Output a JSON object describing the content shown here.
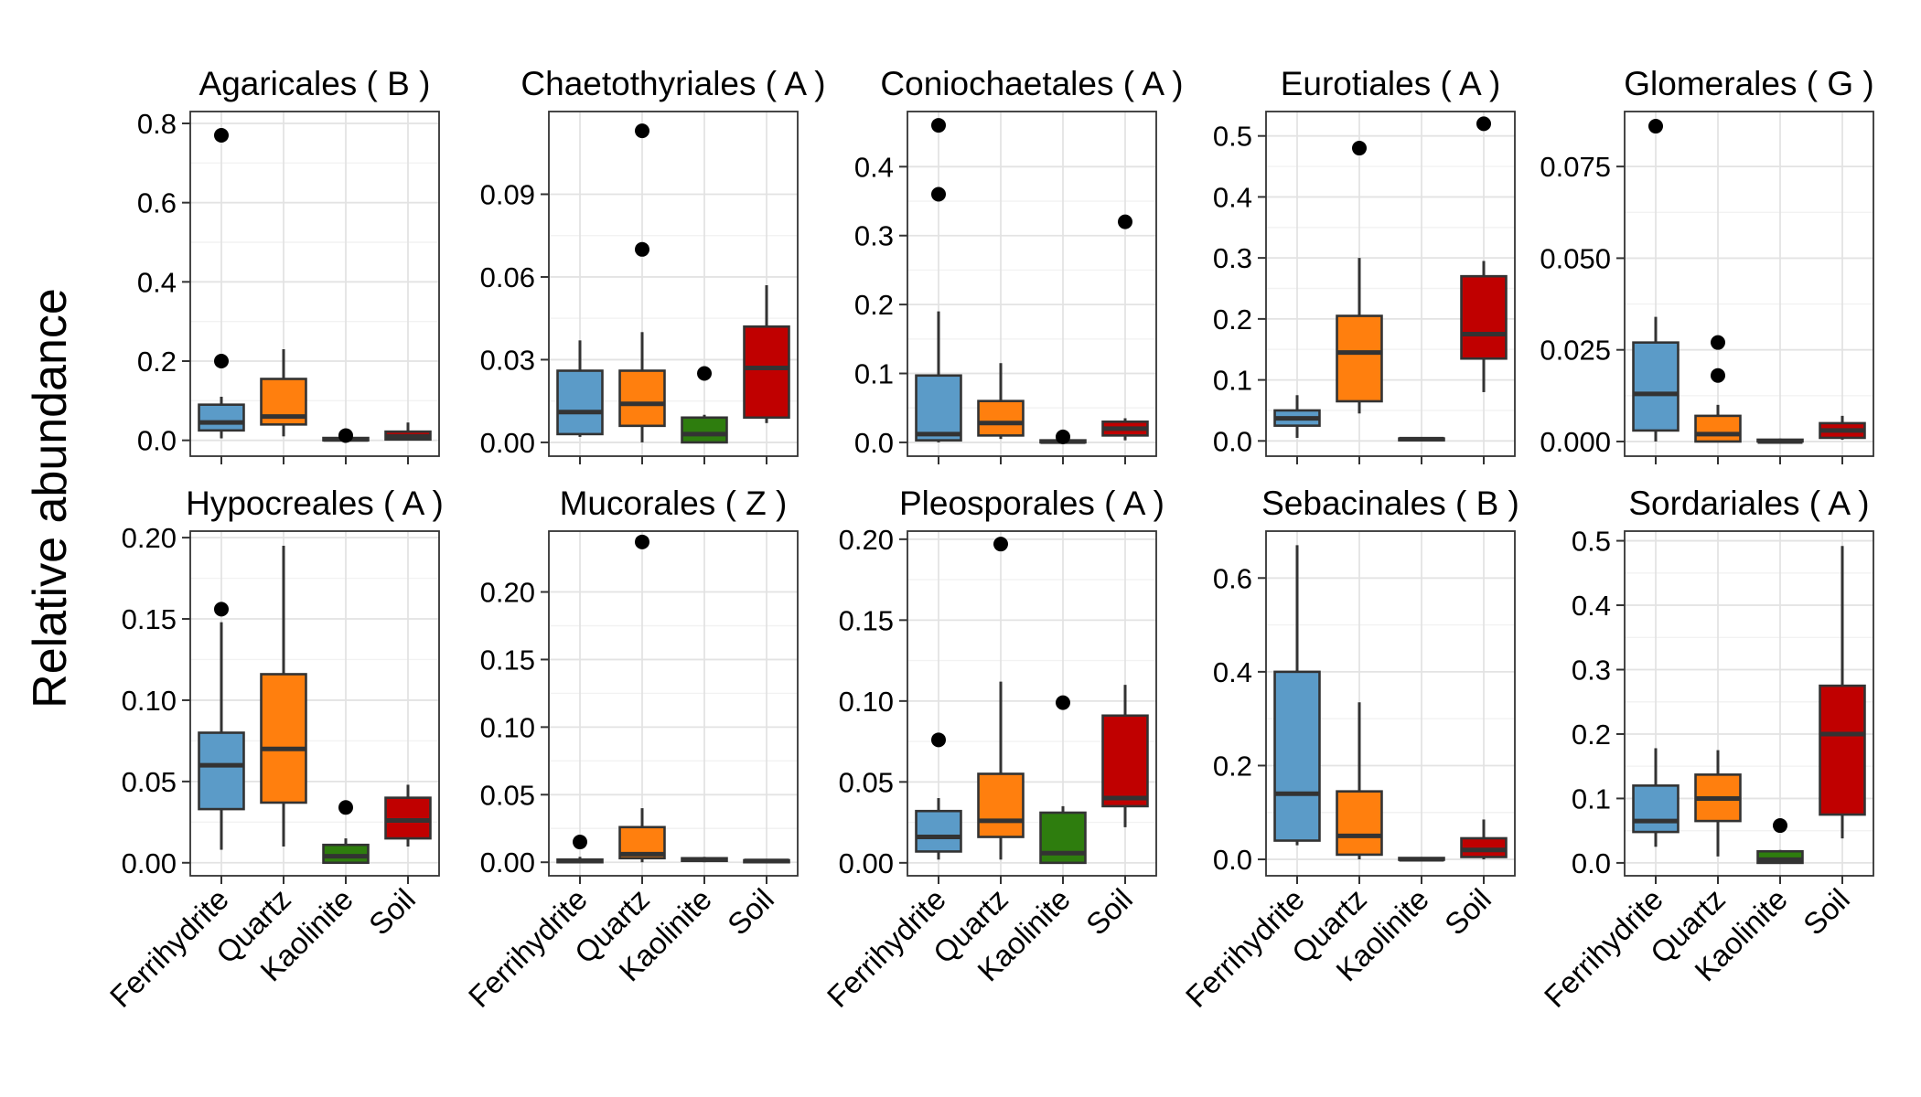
{
  "chart_data": {
    "type": "box",
    "ylabel": "Relative abundance",
    "categories": [
      "Ferrihydrite",
      "Quartz",
      "Kaolinite",
      "Soil"
    ],
    "colors": {
      "Ferrihydrite": "#5b9bc8",
      "Quartz": "#ff7f0e",
      "Kaolinite": "#2e7d0e",
      "Soil": "#c00000"
    },
    "panels": [
      {
        "title": "Agaricales ( B )",
        "ylim": [
          -0.04,
          0.83
        ],
        "yticks": [
          0.0,
          0.2,
          0.4,
          0.6,
          0.8
        ],
        "ytick_labels": [
          "0.0",
          "0.2",
          "0.4",
          "0.6",
          "0.8"
        ],
        "boxes": [
          {
            "category": "Ferrihydrite",
            "whisker_low": 0.005,
            "q1": 0.025,
            "median": 0.045,
            "q3": 0.09,
            "whisker_high": 0.11,
            "outliers": [
              0.2,
              0.77
            ]
          },
          {
            "category": "Quartz",
            "whisker_low": 0.01,
            "q1": 0.04,
            "median": 0.06,
            "q3": 0.155,
            "whisker_high": 0.23,
            "outliers": []
          },
          {
            "category": "Kaolinite",
            "whisker_low": 0.0,
            "q1": 0.0,
            "median": 0.002,
            "q3": 0.006,
            "whisker_high": 0.01,
            "outliers": [
              0.012
            ]
          },
          {
            "category": "Soil",
            "whisker_low": 0.0,
            "q1": 0.002,
            "median": 0.01,
            "q3": 0.022,
            "whisker_high": 0.045,
            "outliers": []
          }
        ]
      },
      {
        "title": "Chaetothyriales ( A )",
        "ylim": [
          -0.005,
          0.12
        ],
        "yticks": [
          0.0,
          0.03,
          0.06,
          0.09
        ],
        "ytick_labels": [
          "0.00",
          "0.03",
          "0.06",
          "0.09"
        ],
        "boxes": [
          {
            "category": "Ferrihydrite",
            "whisker_low": 0.002,
            "q1": 0.003,
            "median": 0.011,
            "q3": 0.026,
            "whisker_high": 0.037,
            "outliers": []
          },
          {
            "category": "Quartz",
            "whisker_low": 0.0,
            "q1": 0.006,
            "median": 0.014,
            "q3": 0.026,
            "whisker_high": 0.04,
            "outliers": [
              0.07,
              0.113
            ]
          },
          {
            "category": "Kaolinite",
            "whisker_low": 0.0,
            "q1": 0.0,
            "median": 0.003,
            "q3": 0.009,
            "whisker_high": 0.01,
            "outliers": [
              0.025
            ]
          },
          {
            "category": "Soil",
            "whisker_low": 0.007,
            "q1": 0.009,
            "median": 0.027,
            "q3": 0.042,
            "whisker_high": 0.057,
            "outliers": []
          }
        ]
      },
      {
        "title": "Coniochaetales ( A )",
        "ylim": [
          -0.02,
          0.48
        ],
        "yticks": [
          0.0,
          0.1,
          0.2,
          0.3,
          0.4
        ],
        "ytick_labels": [
          "0.0",
          "0.1",
          "0.2",
          "0.3",
          "0.4"
        ],
        "boxes": [
          {
            "category": "Ferrihydrite",
            "whisker_low": 0.0,
            "q1": 0.003,
            "median": 0.012,
            "q3": 0.097,
            "whisker_high": 0.19,
            "outliers": [
              0.36,
              0.46
            ]
          },
          {
            "category": "Quartz",
            "whisker_low": 0.005,
            "q1": 0.01,
            "median": 0.028,
            "q3": 0.06,
            "whisker_high": 0.115,
            "outliers": []
          },
          {
            "category": "Kaolinite",
            "whisker_low": 0.0,
            "q1": 0.0,
            "median": 0.001,
            "q3": 0.003,
            "whisker_high": 0.005,
            "outliers": [
              0.008
            ]
          },
          {
            "category": "Soil",
            "whisker_low": 0.003,
            "q1": 0.01,
            "median": 0.02,
            "q3": 0.03,
            "whisker_high": 0.035,
            "outliers": [
              0.32
            ]
          }
        ]
      },
      {
        "title": "Eurotiales ( A )",
        "ylim": [
          -0.025,
          0.54
        ],
        "yticks": [
          0.0,
          0.1,
          0.2,
          0.3,
          0.4,
          0.5
        ],
        "ytick_labels": [
          "0.0",
          "0.1",
          "0.2",
          "0.3",
          "0.4",
          "0.5"
        ],
        "boxes": [
          {
            "category": "Ferrihydrite",
            "whisker_low": 0.005,
            "q1": 0.025,
            "median": 0.037,
            "q3": 0.05,
            "whisker_high": 0.075,
            "outliers": []
          },
          {
            "category": "Quartz",
            "whisker_low": 0.045,
            "q1": 0.065,
            "median": 0.145,
            "q3": 0.205,
            "whisker_high": 0.3,
            "outliers": [
              0.48
            ]
          },
          {
            "category": "Kaolinite",
            "whisker_low": 0.001,
            "q1": 0.002,
            "median": 0.003,
            "q3": 0.004,
            "whisker_high": 0.006,
            "outliers": []
          },
          {
            "category": "Soil",
            "whisker_low": 0.08,
            "q1": 0.135,
            "median": 0.175,
            "q3": 0.27,
            "whisker_high": 0.295,
            "outliers": [
              0.52
            ]
          }
        ]
      },
      {
        "title": "Glomerales ( G )",
        "ylim": [
          -0.004,
          0.09
        ],
        "yticks": [
          0.0,
          0.025,
          0.05,
          0.075
        ],
        "ytick_labels": [
          "0.000",
          "0.025",
          "0.050",
          "0.075"
        ],
        "boxes": [
          {
            "category": "Ferrihydrite",
            "whisker_low": 0.0,
            "q1": 0.003,
            "median": 0.013,
            "q3": 0.027,
            "whisker_high": 0.034,
            "outliers": [
              0.086
            ]
          },
          {
            "category": "Quartz",
            "whisker_low": 0.0,
            "q1": 0.0,
            "median": 0.002,
            "q3": 0.007,
            "whisker_high": 0.01,
            "outliers": [
              0.018,
              0.027
            ]
          },
          {
            "category": "Kaolinite",
            "whisker_low": 0.0,
            "q1": 0.0,
            "median": 0.0,
            "q3": 0.0005,
            "whisker_high": 0.0008,
            "outliers": []
          },
          {
            "category": "Soil",
            "whisker_low": 0.0005,
            "q1": 0.001,
            "median": 0.003,
            "q3": 0.005,
            "whisker_high": 0.007,
            "outliers": []
          }
        ]
      },
      {
        "title": "Hypocreales ( A )",
        "ylim": [
          -0.008,
          0.204
        ],
        "yticks": [
          0.0,
          0.05,
          0.1,
          0.15,
          0.2
        ],
        "ytick_labels": [
          "0.00",
          "0.05",
          "0.10",
          "0.15",
          "0.20"
        ],
        "boxes": [
          {
            "category": "Ferrihydrite",
            "whisker_low": 0.008,
            "q1": 0.033,
            "median": 0.06,
            "q3": 0.08,
            "whisker_high": 0.148,
            "outliers": [
              0.156
            ]
          },
          {
            "category": "Quartz",
            "whisker_low": 0.01,
            "q1": 0.037,
            "median": 0.07,
            "q3": 0.116,
            "whisker_high": 0.195,
            "outliers": []
          },
          {
            "category": "Kaolinite",
            "whisker_low": 0.0,
            "q1": 0.0,
            "median": 0.004,
            "q3": 0.011,
            "whisker_high": 0.015,
            "outliers": [
              0.034
            ]
          },
          {
            "category": "Soil",
            "whisker_low": 0.01,
            "q1": 0.015,
            "median": 0.026,
            "q3": 0.04,
            "whisker_high": 0.048,
            "outliers": []
          }
        ]
      },
      {
        "title": "Mucorales ( Z )",
        "ylim": [
          -0.01,
          0.245
        ],
        "yticks": [
          0.0,
          0.05,
          0.1,
          0.15,
          0.2
        ],
        "ytick_labels": [
          "0.00",
          "0.05",
          "0.10",
          "0.15",
          "0.20"
        ],
        "boxes": [
          {
            "category": "Ferrihydrite",
            "whisker_low": 0.0,
            "q1": 0.0,
            "median": 0.001,
            "q3": 0.002,
            "whisker_high": 0.004,
            "outliers": [
              0.015
            ]
          },
          {
            "category": "Quartz",
            "whisker_low": 0.0,
            "q1": 0.003,
            "median": 0.006,
            "q3": 0.026,
            "whisker_high": 0.04,
            "outliers": [
              0.237
            ]
          },
          {
            "category": "Kaolinite",
            "whisker_low": 0.0,
            "q1": 0.001,
            "median": 0.002,
            "q3": 0.003,
            "whisker_high": 0.004,
            "outliers": []
          },
          {
            "category": "Soil",
            "whisker_low": 0.0,
            "q1": 0.0,
            "median": 0.001,
            "q3": 0.0015,
            "whisker_high": 0.002,
            "outliers": []
          }
        ]
      },
      {
        "title": "Pleosporales ( A )",
        "ylim": [
          -0.008,
          0.205
        ],
        "yticks": [
          0.0,
          0.05,
          0.1,
          0.15,
          0.2
        ],
        "ytick_labels": [
          "0.00",
          "0.05",
          "0.10",
          "0.15",
          "0.20"
        ],
        "boxes": [
          {
            "category": "Ferrihydrite",
            "whisker_low": 0.002,
            "q1": 0.007,
            "median": 0.016,
            "q3": 0.032,
            "whisker_high": 0.04,
            "outliers": [
              0.076
            ]
          },
          {
            "category": "Quartz",
            "whisker_low": 0.002,
            "q1": 0.016,
            "median": 0.026,
            "q3": 0.055,
            "whisker_high": 0.112,
            "outliers": [
              0.197
            ]
          },
          {
            "category": "Kaolinite",
            "whisker_low": 0.0,
            "q1": 0.0,
            "median": 0.006,
            "q3": 0.031,
            "whisker_high": 0.035,
            "outliers": [
              0.099
            ]
          },
          {
            "category": "Soil",
            "whisker_low": 0.022,
            "q1": 0.035,
            "median": 0.04,
            "q3": 0.091,
            "whisker_high": 0.11,
            "outliers": []
          }
        ]
      },
      {
        "title": "Sebacinales ( B )",
        "ylim": [
          -0.035,
          0.7
        ],
        "yticks": [
          0.0,
          0.2,
          0.4,
          0.6
        ],
        "ytick_labels": [
          "0.0",
          "0.2",
          "0.4",
          "0.6"
        ],
        "boxes": [
          {
            "category": "Ferrihydrite",
            "whisker_low": 0.03,
            "q1": 0.04,
            "median": 0.14,
            "q3": 0.4,
            "whisker_high": 0.67,
            "outliers": []
          },
          {
            "category": "Quartz",
            "whisker_low": 0.0,
            "q1": 0.01,
            "median": 0.05,
            "q3": 0.145,
            "whisker_high": 0.335,
            "outliers": []
          },
          {
            "category": "Kaolinite",
            "whisker_low": 0.0,
            "q1": 0.0,
            "median": 0.0,
            "q3": 0.003,
            "whisker_high": 0.005,
            "outliers": []
          },
          {
            "category": "Soil",
            "whisker_low": 0.0,
            "q1": 0.005,
            "median": 0.02,
            "q3": 0.045,
            "whisker_high": 0.085,
            "outliers": []
          }
        ]
      },
      {
        "title": "Sordariales ( A )",
        "ylim": [
          -0.02,
          0.515
        ],
        "yticks": [
          0.0,
          0.1,
          0.2,
          0.3,
          0.4,
          0.5
        ],
        "ytick_labels": [
          "0.0",
          "0.1",
          "0.2",
          "0.3",
          "0.4",
          "0.5"
        ],
        "boxes": [
          {
            "category": "Ferrihydrite",
            "whisker_low": 0.025,
            "q1": 0.048,
            "median": 0.065,
            "q3": 0.12,
            "whisker_high": 0.178,
            "outliers": []
          },
          {
            "category": "Quartz",
            "whisker_low": 0.01,
            "q1": 0.065,
            "median": 0.1,
            "q3": 0.137,
            "whisker_high": 0.175,
            "outliers": []
          },
          {
            "category": "Kaolinite",
            "whisker_low": 0.0,
            "q1": 0.0,
            "median": 0.005,
            "q3": 0.018,
            "whisker_high": 0.02,
            "outliers": [
              0.058
            ]
          },
          {
            "category": "Soil",
            "whisker_low": 0.038,
            "q1": 0.075,
            "median": 0.2,
            "q3": 0.275,
            "whisker_high": 0.492,
            "outliers": []
          }
        ]
      }
    ]
  }
}
